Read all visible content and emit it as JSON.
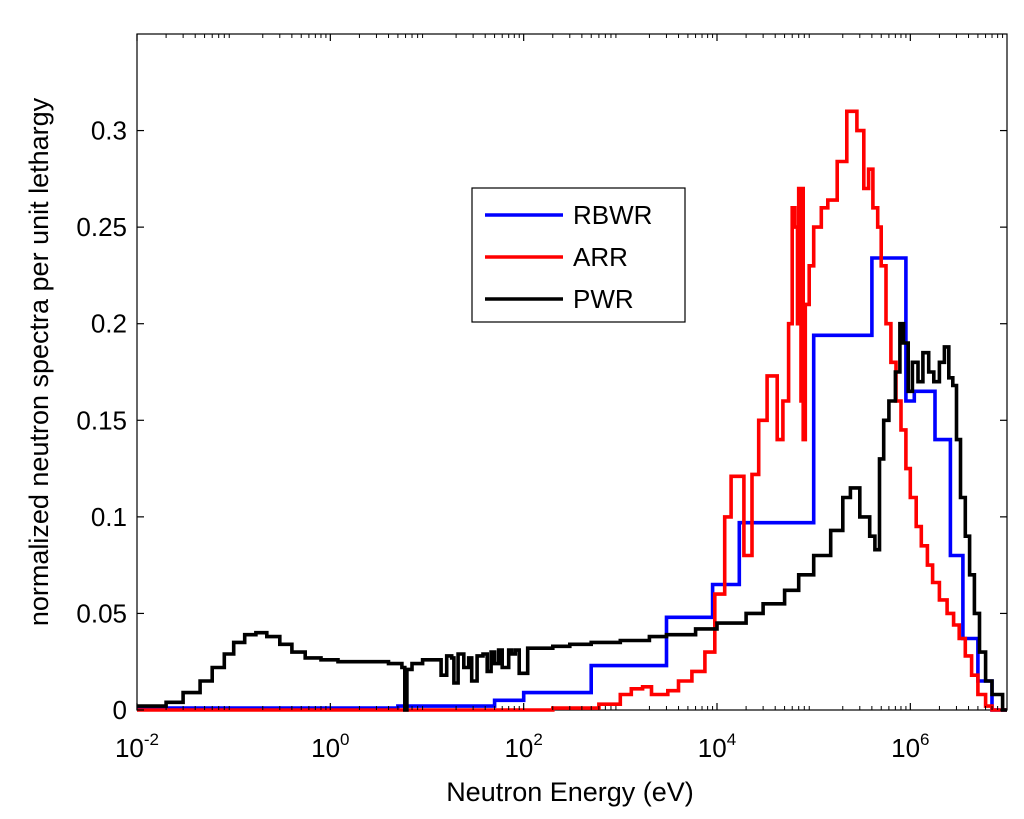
{
  "chart_data": {
    "type": "line",
    "xscale": "log",
    "xlabel": "Neutron Energy (eV)",
    "ylabel": "normalized neutron spectra per unit lethargy",
    "xlim": [
      0.01,
      10000000
    ],
    "ylim": [
      0,
      0.35
    ],
    "x_ticks": [
      {
        "value": 0.01,
        "base": "10",
        "exp": "-2"
      },
      {
        "value": 1,
        "base": "10",
        "exp": "0"
      },
      {
        "value": 100,
        "base": "10",
        "exp": "2"
      },
      {
        "value": 10000,
        "base": "10",
        "exp": "4"
      },
      {
        "value": 1000000,
        "base": "10",
        "exp": "6"
      }
    ],
    "y_ticks": [
      {
        "value": 0,
        "label": "0"
      },
      {
        "value": 0.05,
        "label": "0.05"
      },
      {
        "value": 0.1,
        "label": "0.1"
      },
      {
        "value": 0.15,
        "label": "0.15"
      },
      {
        "value": 0.2,
        "label": "0.2"
      },
      {
        "value": 0.25,
        "label": "0.25"
      },
      {
        "value": 0.3,
        "label": "0.3"
      }
    ],
    "legend_position": "upper-center",
    "series": [
      {
        "name": "RBWR",
        "color": "#0000ff",
        "step": true,
        "x": [
          0.01,
          5,
          50,
          100,
          500,
          3000,
          9000,
          17000,
          30000,
          100000,
          400000,
          900000,
          1100000,
          1800000,
          2600000,
          3500000,
          5000000,
          7000000
        ],
        "y": [
          0.001,
          0.002,
          0.005,
          0.009,
          0.023,
          0.048,
          0.065,
          0.097,
          0.097,
          0.194,
          0.234,
          0.16,
          0.165,
          0.14,
          0.08,
          0.037,
          0.015,
          0.0
        ]
      },
      {
        "name": "ARR",
        "color": "#ff0000",
        "step": true,
        "x": [
          0.01,
          200,
          600,
          1000,
          1300,
          1700,
          2100,
          3100,
          4000,
          5500,
          7500,
          9500,
          12000,
          14000,
          19000,
          23000,
          27000,
          33000,
          42000,
          48000,
          55000,
          60000,
          64000,
          68000,
          70000,
          72000,
          74000,
          76000,
          78000,
          82000,
          90000,
          100000,
          120000,
          140000,
          175000,
          220000,
          280000,
          330000,
          370000,
          410000,
          460000,
          500000,
          560000,
          630000,
          710000,
          800000,
          900000,
          1000000,
          1150000,
          1300000,
          1500000,
          1700000,
          2000000,
          2400000,
          2800000,
          3200000,
          3700000,
          4300000,
          5000000,
          6000000,
          7000000,
          8000000
        ],
        "y": [
          0.0,
          0.001,
          0.003,
          0.008,
          0.011,
          0.012,
          0.008,
          0.01,
          0.015,
          0.02,
          0.03,
          0.06,
          0.1,
          0.121,
          0.08,
          0.122,
          0.15,
          0.173,
          0.14,
          0.16,
          0.2,
          0.26,
          0.25,
          0.2,
          0.27,
          0.21,
          0.16,
          0.27,
          0.14,
          0.21,
          0.23,
          0.25,
          0.26,
          0.264,
          0.284,
          0.31,
          0.3,
          0.27,
          0.28,
          0.26,
          0.25,
          0.23,
          0.2,
          0.18,
          0.16,
          0.145,
          0.125,
          0.11,
          0.095,
          0.085,
          0.075,
          0.066,
          0.057,
          0.05,
          0.044,
          0.037,
          0.028,
          0.018,
          0.008,
          0.002,
          0.0,
          0.0
        ]
      },
      {
        "name": "PWR",
        "color": "#000000",
        "step": true,
        "x": [
          0.01,
          0.02,
          0.03,
          0.045,
          0.06,
          0.08,
          0.1,
          0.13,
          0.17,
          0.22,
          0.3,
          0.4,
          0.55,
          0.8,
          1.2,
          2,
          3,
          4,
          5.5,
          5.9,
          6.2,
          7,
          9,
          12,
          14,
          16,
          18,
          19,
          21,
          24,
          27,
          29,
          33,
          38,
          42,
          46,
          50,
          55,
          60,
          70,
          75,
          82,
          90,
          110,
          130,
          150,
          200,
          300,
          500,
          1000,
          2000,
          3000,
          6000,
          10000,
          20000,
          30000,
          50000,
          70000,
          100000,
          150000,
          200000,
          240000,
          300000,
          380000,
          430000,
          480000,
          530000,
          600000,
          700000,
          780000,
          850000,
          950000,
          1050000,
          1200000,
          1350000,
          1550000,
          1750000,
          2000000,
          2250000,
          2500000,
          2750000,
          3000000,
          3300000,
          3700000,
          4100000,
          4600000,
          5200000,
          6000000,
          7000000,
          9000000
        ],
        "y": [
          0.002,
          0.004,
          0.009,
          0.015,
          0.022,
          0.029,
          0.035,
          0.039,
          0.04,
          0.038,
          0.034,
          0.03,
          0.027,
          0.026,
          0.025,
          0.025,
          0.025,
          0.024,
          0.022,
          0.0,
          0.021,
          0.024,
          0.026,
          0.026,
          0.018,
          0.028,
          0.027,
          0.014,
          0.029,
          0.022,
          0.027,
          0.015,
          0.028,
          0.029,
          0.02,
          0.03,
          0.024,
          0.031,
          0.022,
          0.031,
          0.029,
          0.031,
          0.019,
          0.032,
          0.032,
          0.032,
          0.033,
          0.034,
          0.035,
          0.036,
          0.038,
          0.039,
          0.042,
          0.045,
          0.05,
          0.055,
          0.062,
          0.07,
          0.08,
          0.093,
          0.11,
          0.115,
          0.1,
          0.09,
          0.083,
          0.13,
          0.15,
          0.16,
          0.175,
          0.2,
          0.19,
          0.165,
          0.18,
          0.17,
          0.185,
          0.175,
          0.17,
          0.18,
          0.188,
          0.172,
          0.168,
          0.14,
          0.11,
          0.09,
          0.07,
          0.05,
          0.03,
          0.015,
          0.008,
          0.0
        ]
      }
    ]
  }
}
